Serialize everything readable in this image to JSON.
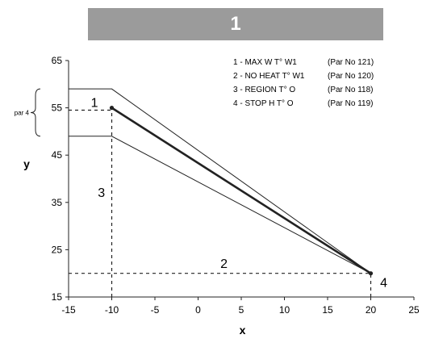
{
  "banner": {
    "label": "1"
  },
  "chart_data": {
    "type": "line",
    "title": "",
    "xlabel": "x",
    "ylabel": "y",
    "xlim": [
      -15,
      25
    ],
    "ylim": [
      15,
      65
    ],
    "xticks": [
      -15,
      -10,
      -5,
      0,
      5,
      10,
      15,
      20,
      25
    ],
    "yticks": [
      15,
      25,
      35,
      45,
      55,
      65
    ],
    "grid": false,
    "series": [
      {
        "role": "main",
        "points": [
          [
            -10,
            55
          ],
          [
            20,
            20
          ]
        ]
      },
      {
        "role": "upper",
        "points": [
          [
            -15,
            59
          ],
          [
            -10,
            59
          ],
          [
            20,
            20
          ]
        ]
      },
      {
        "role": "lower",
        "points": [
          [
            -15,
            49
          ],
          [
            -10,
            49
          ],
          [
            20,
            20
          ]
        ]
      }
    ],
    "guides": [
      {
        "points": [
          [
            -10,
            15
          ],
          [
            -10,
            55
          ]
        ]
      },
      {
        "points": [
          [
            -15,
            54.5
          ],
          [
            -10,
            54.5
          ]
        ]
      },
      {
        "points": [
          [
            -15,
            20
          ],
          [
            20,
            20
          ]
        ]
      },
      {
        "points": [
          [
            20,
            15
          ],
          [
            20,
            20
          ]
        ]
      }
    ],
    "point_labels": [
      {
        "text": "1",
        "x": -12,
        "y": 56
      },
      {
        "text": "2",
        "x": 3,
        "y": 22
      },
      {
        "text": "3",
        "x": -11.2,
        "y": 37
      },
      {
        "text": "4",
        "x": 21.5,
        "y": 18
      }
    ],
    "brace": {
      "label": "par 4",
      "from": 49,
      "to": 59
    },
    "legend": {
      "placement": "top-right",
      "items": [
        {
          "name": "1 - MAX W T° W1",
          "par": "(Par No 121)"
        },
        {
          "name": "2 - NO HEAT T° W1",
          "par": "(Par No 120)"
        },
        {
          "name": "3 - REGION T° O",
          "par": "(Par No 118)"
        },
        {
          "name": "4 - STOP H T° O",
          "par": "(Par No 119)"
        }
      ]
    }
  }
}
